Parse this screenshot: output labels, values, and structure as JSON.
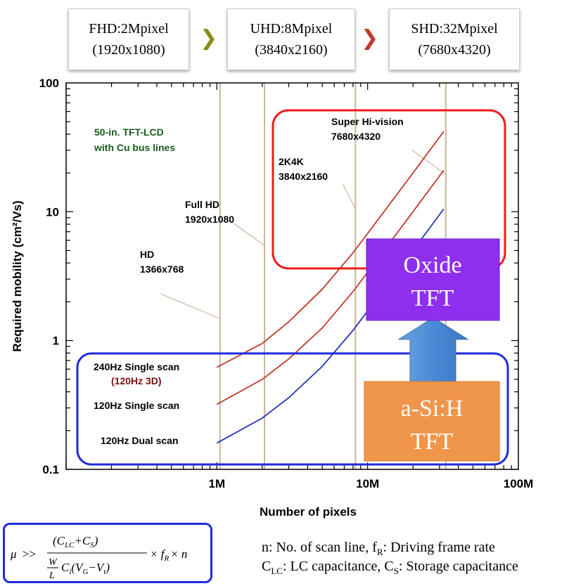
{
  "header": {
    "boxes": [
      {
        "line1": "FHD:2Mpixel",
        "line2": "(1920x1080)"
      },
      {
        "line1": "UHD:8Mpixel",
        "line2": "(3840x2160)"
      },
      {
        "line1": "SHD:32Mpixel",
        "line2": "(7680x4320)"
      }
    ],
    "arrow_colors": [
      "#8a8a17",
      "#c0392b"
    ]
  },
  "chart_data": {
    "type": "line",
    "xscale": "log",
    "yscale": "log",
    "xlim": [
      100000,
      100000000
    ],
    "ylim": [
      0.1,
      100
    ],
    "xlabel": "Number of pixels",
    "ylabel": "Required mobility (cm²/Vs)",
    "x_ticks": [
      {
        "value": 1000000,
        "label": "1M"
      },
      {
        "value": 10000000,
        "label": "10M"
      },
      {
        "value": 100000000,
        "label": "100M"
      }
    ],
    "y_ticks": [
      {
        "value": 0.1,
        "label": "0.1"
      },
      {
        "value": 1,
        "label": "1"
      },
      {
        "value": 10,
        "label": "10"
      },
      {
        "value": 100,
        "label": "100"
      }
    ],
    "annotation": {
      "line1": "50-in. TFT-LCD",
      "line2": "with Cu bus lines",
      "color": "#1a5c1a"
    },
    "reference_lines": [
      {
        "x": 1050000,
        "line1": "HD",
        "line2": "1366x768",
        "label_x": 180000,
        "label_y": 3.8
      },
      {
        "x": 2070000,
        "line1": "Full HD",
        "line2": "1920x1080",
        "label_x": 520000,
        "label_y": 14
      },
      {
        "x": 8300000,
        "line1": "2K4K",
        "line2": "3840x2160",
        "label_x": 2900000,
        "label_y": 27
      },
      {
        "x": 33000000,
        "line1": "Super Hi-vision",
        "line2": "7680x4320",
        "label_x": 8300000,
        "label_y": 50
      }
    ],
    "series": [
      {
        "name": "240Hz Single scan",
        "sub": "(120Hz 3D)",
        "color": "#c0392b",
        "x": [
          1000000,
          2000000,
          3000000,
          5000000,
          8000000,
          12000000,
          20000000,
          32000000
        ],
        "y": [
          0.62,
          0.95,
          1.4,
          2.5,
          4.8,
          9.0,
          20,
          42
        ]
      },
      {
        "name": "120Hz Single scan",
        "color": "#c0392b",
        "x": [
          1000000,
          2000000,
          3000000,
          5000000,
          8000000,
          12000000,
          20000000,
          32000000
        ],
        "y": [
          0.32,
          0.5,
          0.72,
          1.25,
          2.4,
          4.5,
          10,
          21
        ]
      },
      {
        "name": "120Hz Dual scan",
        "color": "#2233bb",
        "x": [
          1000000,
          2000000,
          3000000,
          5000000,
          8000000,
          12000000,
          20000000,
          32000000
        ],
        "y": [
          0.16,
          0.25,
          0.36,
          0.63,
          1.2,
          2.25,
          5.0,
          10.5
        ]
      }
    ],
    "overlay_boxes": [
      {
        "line1": "Oxide",
        "line2": "TFT",
        "color": "#8e2ff0"
      },
      {
        "line1": "a-Si:H",
        "line2": "TFT",
        "color": "#f0964a"
      }
    ],
    "highlight_colors": {
      "red": "#f01c1c",
      "blue": "#1f2bdb",
      "arrow": "#4a8ad6"
    }
  },
  "formula": {
    "mu": "μ",
    "gtgt": ">>",
    "numerator": "(C",
    "num_sub1": "LC",
    "num_plus": "+C",
    "num_sub2": "S",
    "num_close": ")",
    "W": "W",
    "L": "L",
    "den_C": "C",
    "den_i": "i",
    "den_V": "(V",
    "den_G": "G",
    "den_minus": "−V",
    "den_t": "t",
    "den_close": ")",
    "times_f": "× f",
    "f_sub": "R",
    "times_n": "× n"
  },
  "notes": {
    "line1_a": "n: No. of scan line, f",
    "line1_sub": "R",
    "line1_b": ": Driving frame rate",
    "line2_a": "C",
    "line2_sub1": "LC",
    "line2_b": ": LC capacitance, C",
    "line2_sub2": "S",
    "line2_c": ": Storage capacitance"
  }
}
